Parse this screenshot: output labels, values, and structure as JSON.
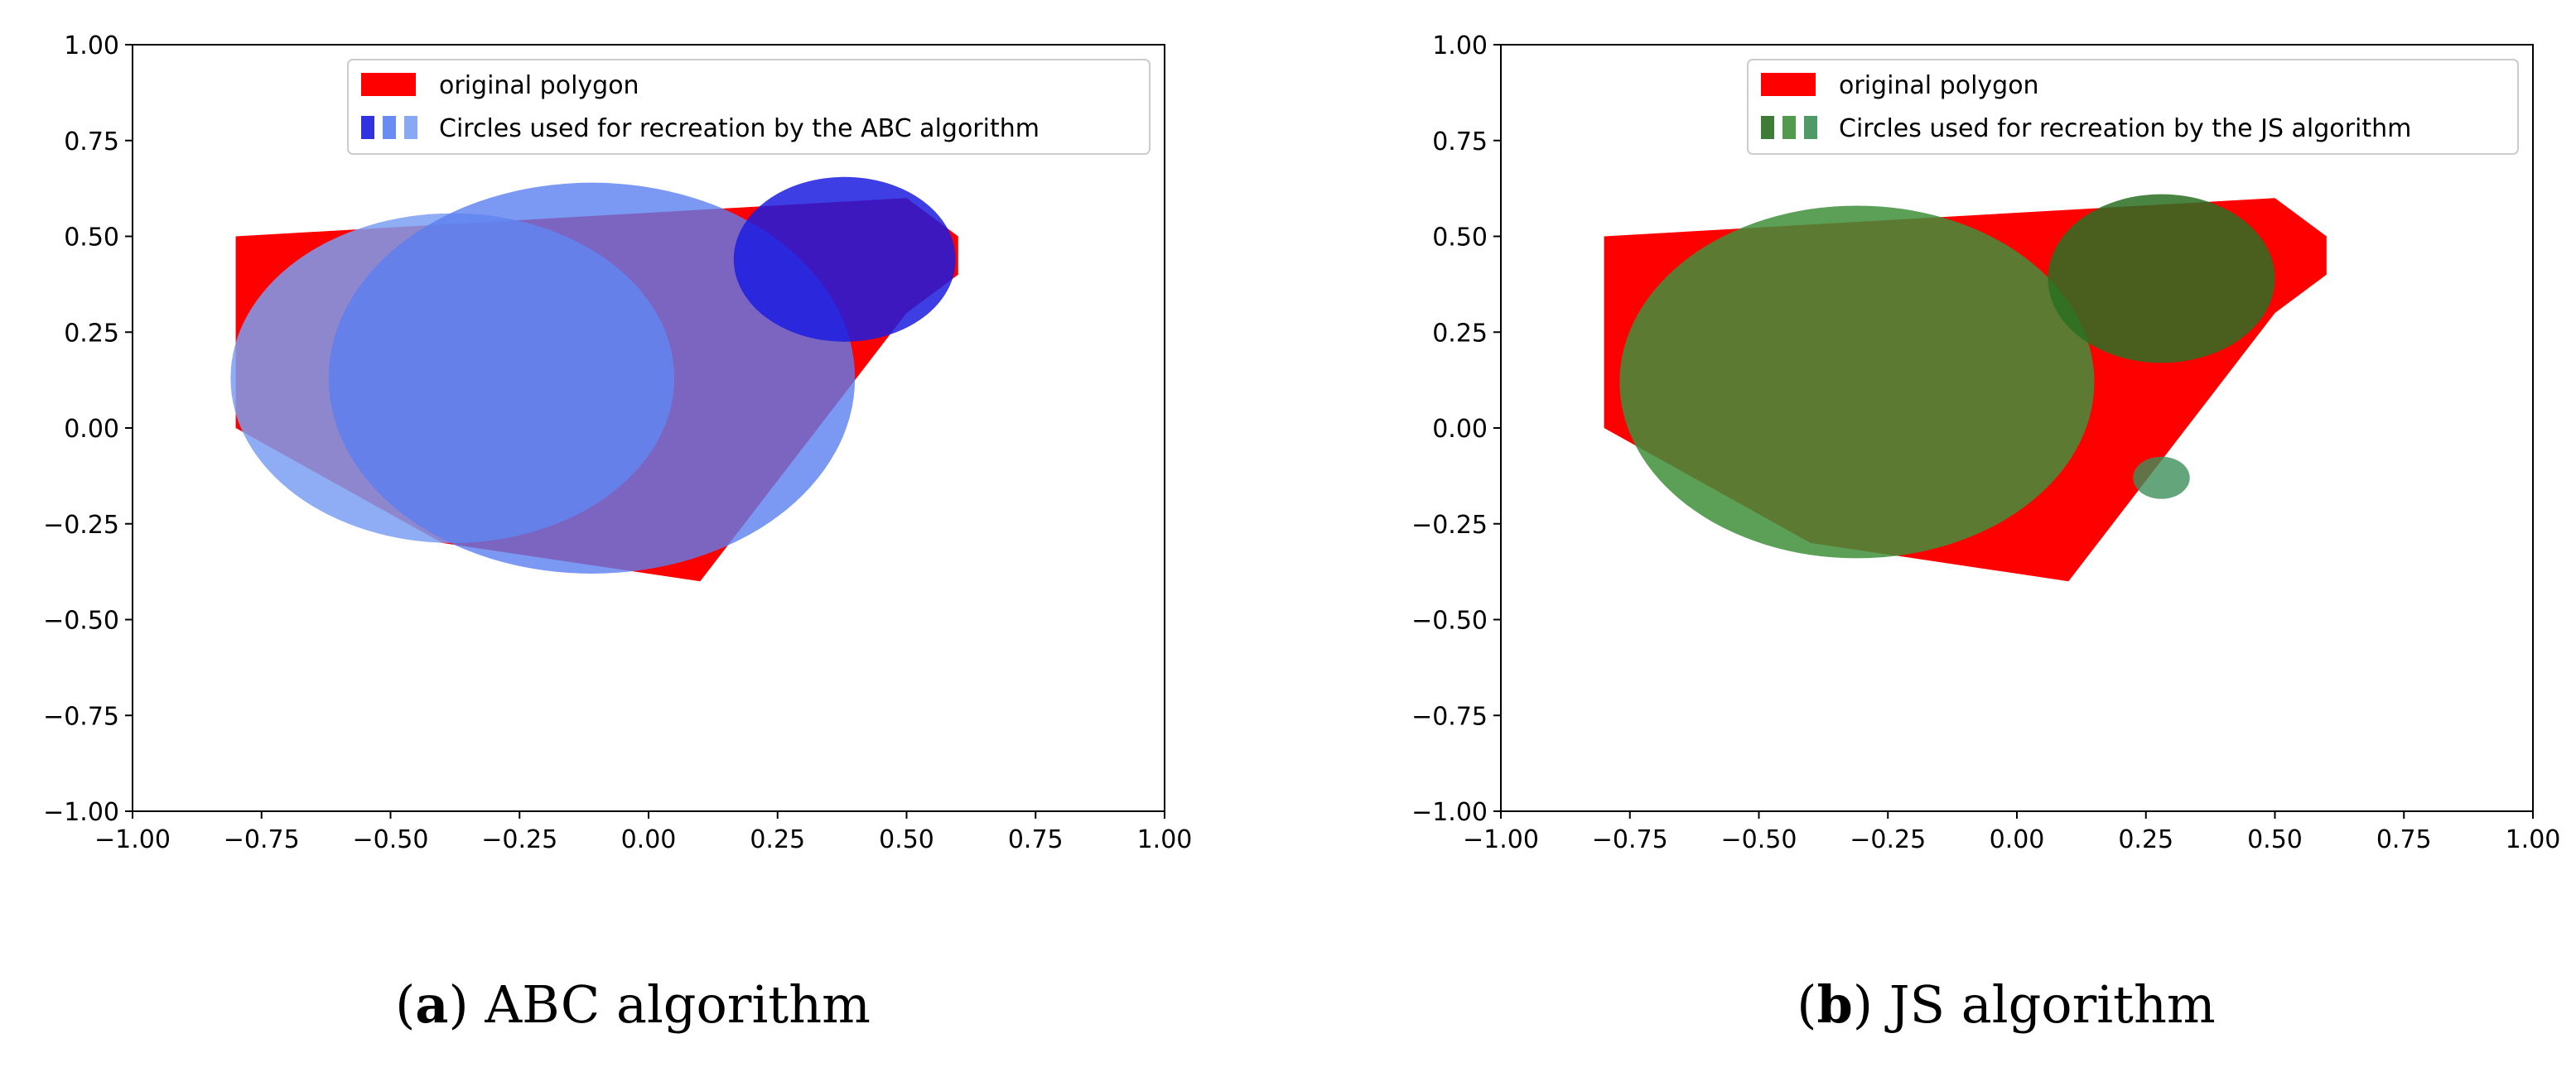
{
  "chart_data": [
    {
      "type": "scatter",
      "subtype": "geometry-overlay",
      "xlim": [
        -1.0,
        1.0
      ],
      "ylim": [
        -1.0,
        1.0
      ],
      "xticks": [
        "−1.00",
        "−0.75",
        "−0.50",
        "−0.25",
        "0.00",
        "0.25",
        "0.50",
        "0.75",
        "1.00"
      ],
      "yticks": [
        "1.00",
        "0.75",
        "0.50",
        "0.25",
        "0.00",
        "−0.25",
        "−0.50",
        "−0.75",
        "−1.00"
      ],
      "legend": {
        "position": "upper-center",
        "entries": [
          "original polygon",
          "Circles used for recreation by the ABC algorithm"
        ]
      },
      "polygon": {
        "color": "#ff0000",
        "points": [
          [
            -0.8,
            0.5
          ],
          [
            0.5,
            0.6
          ],
          [
            0.6,
            0.5
          ],
          [
            0.6,
            0.4
          ],
          [
            0.5,
            0.3
          ],
          [
            0.1,
            -0.4
          ],
          [
            -0.4,
            -0.3
          ],
          [
            -0.8,
            0.0
          ]
        ]
      },
      "circles": [
        {
          "cx": -0.38,
          "cy": 0.13,
          "r": 0.43,
          "color": "#7b9ff2",
          "opacity": 0.85
        },
        {
          "cx": -0.11,
          "cy": 0.13,
          "r": 0.51,
          "color": "#5a7ef0",
          "opacity": 0.8
        },
        {
          "cx": 0.38,
          "cy": 0.44,
          "r": 0.215,
          "color": "#1c1ce0",
          "opacity": 0.85
        }
      ],
      "legend_swatch_colors": [
        "#1c1ce0",
        "#5a7ef0",
        "#7b9ff2"
      ],
      "caption": {
        "label": "a",
        "text": "ABC algorithm"
      }
    },
    {
      "type": "scatter",
      "subtype": "geometry-overlay",
      "xlim": [
        -1.0,
        1.0
      ],
      "ylim": [
        -1.0,
        1.0
      ],
      "xticks": [
        "−1.00",
        "−0.75",
        "−0.50",
        "−0.25",
        "0.00",
        "0.25",
        "0.50",
        "0.75",
        "1.00"
      ],
      "yticks": [
        "1.00",
        "0.75",
        "0.50",
        "0.25",
        "0.00",
        "−0.25",
        "−0.50",
        "−0.75",
        "−1.00"
      ],
      "legend": {
        "position": "upper-center",
        "entries": [
          "original polygon",
          "Circles used for recreation by the JS algorithm"
        ]
      },
      "polygon": {
        "color": "#ff0000",
        "points": [
          [
            -0.8,
            0.5
          ],
          [
            0.5,
            0.6
          ],
          [
            0.6,
            0.5
          ],
          [
            0.6,
            0.4
          ],
          [
            0.5,
            0.3
          ],
          [
            0.1,
            -0.4
          ],
          [
            -0.4,
            -0.3
          ],
          [
            -0.8,
            0.0
          ]
        ]
      },
      "circles": [
        {
          "cx": -0.31,
          "cy": 0.12,
          "r": 0.46,
          "color": "#3f8f3a",
          "opacity": 0.85
        },
        {
          "cx": 0.28,
          "cy": 0.39,
          "r": 0.22,
          "color": "#2a6e22",
          "opacity": 0.85
        },
        {
          "cx": 0.28,
          "cy": -0.13,
          "r": 0.055,
          "color": "#3d8f5a",
          "opacity": 0.8
        }
      ],
      "legend_swatch_colors": [
        "#2a6e22",
        "#3f8f3a",
        "#3d8f5a"
      ],
      "caption": {
        "label": "b",
        "text": "JS algorithm"
      }
    }
  ]
}
